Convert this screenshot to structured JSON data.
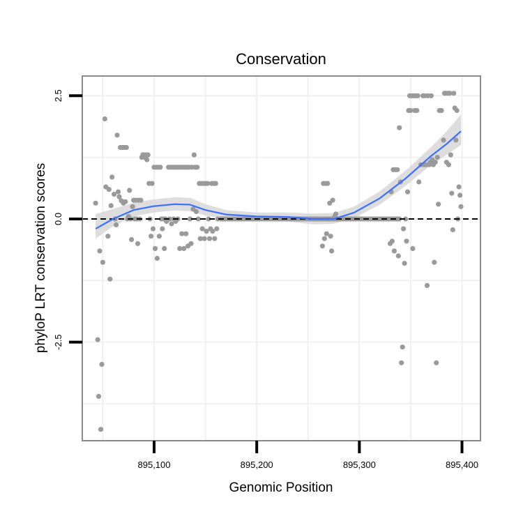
{
  "chart_data": {
    "type": "scatter",
    "title": "Conservation",
    "xlabel": "Genomic Position",
    "ylabel": "phyloP LRT conservation scores",
    "xlim": [
      895030,
      895418
    ],
    "ylim": [
      -4.5,
      2.9
    ],
    "x_ticks": [
      {
        "value": 895100,
        "label": "895,100"
      },
      {
        "value": 895200,
        "label": "895,200"
      },
      {
        "value": 895300,
        "label": "895,300"
      },
      {
        "value": 895400,
        "label": "895,400"
      }
    ],
    "y_ticks": [
      {
        "value": -2.5,
        "label": "-2.5"
      },
      {
        "value": 0.0,
        "label": "0.0"
      },
      {
        "value": 2.5,
        "label": "2.5"
      }
    ],
    "reference_line": {
      "y": 0,
      "style": "dashed"
    },
    "grid": true,
    "points": [
      {
        "x": 895043,
        "y": 0.32
      },
      {
        "x": 895045,
        "y": -2.45
      },
      {
        "x": 895046,
        "y": -3.6
      },
      {
        "x": 895047,
        "y": -0.65
      },
      {
        "x": 895048,
        "y": -4.27
      },
      {
        "x": 895049,
        "y": -2.95
      },
      {
        "x": 895050,
        "y": -0.88
      },
      {
        "x": 895052,
        "y": 2.03
      },
      {
        "x": 895053,
        "y": 0.65
      },
      {
        "x": 895055,
        "y": -0.35
      },
      {
        "x": 895056,
        "y": 0.6
      },
      {
        "x": 895057,
        "y": -1.22
      },
      {
        "x": 895058,
        "y": 0.27
      },
      {
        "x": 895059,
        "y": 0.85
      },
      {
        "x": 895061,
        "y": 0.5
      },
      {
        "x": 895062,
        "y": 0.0
      },
      {
        "x": 895063,
        "y": -0.12
      },
      {
        "x": 895064,
        "y": 1.7
      },
      {
        "x": 895065,
        "y": 0.55
      },
      {
        "x": 895066,
        "y": 0.45
      },
      {
        "x": 895067,
        "y": 1.45
      },
      {
        "x": 895068,
        "y": 0.37
      },
      {
        "x": 895069,
        "y": 1.45
      },
      {
        "x": 895070,
        "y": 0.32
      },
      {
        "x": 895071,
        "y": 1.45
      },
      {
        "x": 895072,
        "y": 0.35
      },
      {
        "x": 895073,
        "y": 1.45
      },
      {
        "x": 895074,
        "y": 0.0
      },
      {
        "x": 895075,
        "y": 0.05
      },
      {
        "x": 895076,
        "y": 0.58
      },
      {
        "x": 895077,
        "y": 0.0
      },
      {
        "x": 895078,
        "y": -0.42
      },
      {
        "x": 895079,
        "y": 0.25
      },
      {
        "x": 895080,
        "y": 0.38
      },
      {
        "x": 895081,
        "y": 0.0
      },
      {
        "x": 895082,
        "y": 0.38
      },
      {
        "x": 895083,
        "y": 0.0
      },
      {
        "x": 895084,
        "y": -0.5
      },
      {
        "x": 895085,
        "y": 0.38
      },
      {
        "x": 895086,
        "y": 0.0
      },
      {
        "x": 895087,
        "y": 0.38
      },
      {
        "x": 895088,
        "y": 1.25
      },
      {
        "x": 895089,
        "y": 1.3
      },
      {
        "x": 895090,
        "y": 1.3
      },
      {
        "x": 895091,
        "y": 1.25
      },
      {
        "x": 895092,
        "y": 1.3
      },
      {
        "x": 895093,
        "y": 1.2
      },
      {
        "x": 895094,
        "y": 1.3
      },
      {
        "x": 895095,
        "y": 0.72
      },
      {
        "x": 895096,
        "y": 0.0
      },
      {
        "x": 895097,
        "y": -0.35
      },
      {
        "x": 895098,
        "y": 0.72
      },
      {
        "x": 895099,
        "y": -0.2
      },
      {
        "x": 895100,
        "y": 1.05
      },
      {
        "x": 895101,
        "y": -0.6
      },
      {
        "x": 895102,
        "y": 1.05
      },
      {
        "x": 895103,
        "y": -0.8
      },
      {
        "x": 895104,
        "y": 1.05
      },
      {
        "x": 895105,
        "y": -0.35
      },
      {
        "x": 895106,
        "y": 1.05
      },
      {
        "x": 895107,
        "y": 0.0
      },
      {
        "x": 895108,
        "y": -0.2
      },
      {
        "x": 895109,
        "y": 0.0
      },
      {
        "x": 895110,
        "y": -0.6
      },
      {
        "x": 895111,
        "y": 0.0
      },
      {
        "x": 895112,
        "y": -0.05
      },
      {
        "x": 895114,
        "y": 1.05
      },
      {
        "x": 895115,
        "y": 0.0
      },
      {
        "x": 895116,
        "y": 1.05
      },
      {
        "x": 895117,
        "y": -0.1
      },
      {
        "x": 895118,
        "y": 1.05
      },
      {
        "x": 895119,
        "y": 0.0
      },
      {
        "x": 895120,
        "y": 1.05
      },
      {
        "x": 895121,
        "y": -0.05
      },
      {
        "x": 895122,
        "y": 1.05
      },
      {
        "x": 895123,
        "y": 0.0
      },
      {
        "x": 895124,
        "y": 1.05
      },
      {
        "x": 895125,
        "y": -0.6
      },
      {
        "x": 895126,
        "y": 1.05
      },
      {
        "x": 895127,
        "y": -0.3
      },
      {
        "x": 895128,
        "y": 1.05
      },
      {
        "x": 895129,
        "y": -0.6
      },
      {
        "x": 895130,
        "y": 1.05
      },
      {
        "x": 895131,
        "y": -0.3
      },
      {
        "x": 895132,
        "y": 1.05
      },
      {
        "x": 895133,
        "y": -0.55
      },
      {
        "x": 895134,
        "y": 1.05
      },
      {
        "x": 895135,
        "y": 0.0
      },
      {
        "x": 895136,
        "y": -0.5
      },
      {
        "x": 895137,
        "y": 1.05
      },
      {
        "x": 895138,
        "y": 0.2
      },
      {
        "x": 895139,
        "y": 1.3
      },
      {
        "x": 895140,
        "y": 1.05
      },
      {
        "x": 895141,
        "y": 0.15
      },
      {
        "x": 895142,
        "y": 1.05
      },
      {
        "x": 895143,
        "y": 0.0
      },
      {
        "x": 895144,
        "y": 0.72
      },
      {
        "x": 895145,
        "y": -0.4
      },
      {
        "x": 895146,
        "y": 0.72
      },
      {
        "x": 895147,
        "y": -0.2
      },
      {
        "x": 895148,
        "y": 0.72
      },
      {
        "x": 895149,
        "y": -0.4
      },
      {
        "x": 895150,
        "y": 0.72
      },
      {
        "x": 895151,
        "y": -0.25
      },
      {
        "x": 895152,
        "y": 0.72
      },
      {
        "x": 895153,
        "y": 0.0
      },
      {
        "x": 895154,
        "y": -0.4
      },
      {
        "x": 895155,
        "y": -0.2
      },
      {
        "x": 895156,
        "y": 0.72
      },
      {
        "x": 895157,
        "y": -0.25
      },
      {
        "x": 895158,
        "y": 0.72
      },
      {
        "x": 895159,
        "y": -0.4
      },
      {
        "x": 895160,
        "y": 0.72
      },
      {
        "x": 895161,
        "y": -0.2
      },
      {
        "x": 895162,
        "y": 0.0
      },
      {
        "x": 895264,
        "y": -0.55
      },
      {
        "x": 895265,
        "y": 0.72
      },
      {
        "x": 895266,
        "y": -0.4
      },
      {
        "x": 895267,
        "y": 0.72
      },
      {
        "x": 895268,
        "y": -0.3
      },
      {
        "x": 895269,
        "y": 0.72
      },
      {
        "x": 895270,
        "y": 0.0
      },
      {
        "x": 895271,
        "y": 0.32
      },
      {
        "x": 895272,
        "y": -0.35
      },
      {
        "x": 895273,
        "y": -0.65
      },
      {
        "x": 895274,
        "y": 0.38
      },
      {
        "x": 895275,
        "y": 0.0
      },
      {
        "x": 895276,
        "y": 0.05
      },
      {
        "x": 895277,
        "y": 0.1
      },
      {
        "x": 895278,
        "y": 0.0
      },
      {
        "x": 895330,
        "y": -0.5
      },
      {
        "x": 895331,
        "y": 0.55
      },
      {
        "x": 895332,
        "y": -0.45
      },
      {
        "x": 895333,
        "y": 1.0
      },
      {
        "x": 895334,
        "y": -0.65
      },
      {
        "x": 895335,
        "y": 1.0
      },
      {
        "x": 895336,
        "y": 0.0
      },
      {
        "x": 895337,
        "y": 1.0
      },
      {
        "x": 895338,
        "y": -0.75
      },
      {
        "x": 895339,
        "y": 1.85
      },
      {
        "x": 895340,
        "y": 0.75
      },
      {
        "x": 895341,
        "y": -2.92
      },
      {
        "x": 895342,
        "y": -2.6
      },
      {
        "x": 895343,
        "y": -0.2
      },
      {
        "x": 895344,
        "y": -0.9
      },
      {
        "x": 895345,
        "y": 0.0
      },
      {
        "x": 895346,
        "y": -0.45
      },
      {
        "x": 895347,
        "y": 0.55
      },
      {
        "x": 895348,
        "y": 2.2
      },
      {
        "x": 895349,
        "y": 2.5
      },
      {
        "x": 895350,
        "y": 2.2
      },
      {
        "x": 895351,
        "y": 2.5
      },
      {
        "x": 895352,
        "y": -0.6
      },
      {
        "x": 895353,
        "y": 2.5
      },
      {
        "x": 895354,
        "y": 2.2
      },
      {
        "x": 895355,
        "y": 2.5
      },
      {
        "x": 895356,
        "y": 2.2
      },
      {
        "x": 895357,
        "y": 2.5
      },
      {
        "x": 895358,
        "y": 0.75
      },
      {
        "x": 895360,
        "y": 1.1
      },
      {
        "x": 895362,
        "y": 2.5
      },
      {
        "x": 895363,
        "y": 1.1
      },
      {
        "x": 895364,
        "y": 2.5
      },
      {
        "x": 895365,
        "y": 1.1
      },
      {
        "x": 895366,
        "y": -1.35
      },
      {
        "x": 895367,
        "y": 2.5
      },
      {
        "x": 895368,
        "y": 1.1
      },
      {
        "x": 895369,
        "y": 1.15
      },
      {
        "x": 895370,
        "y": 2.5
      },
      {
        "x": 895371,
        "y": 1.2
      },
      {
        "x": 895372,
        "y": 1.1
      },
      {
        "x": 895373,
        "y": -0.88
      },
      {
        "x": 895374,
        "y": 1.15
      },
      {
        "x": 895375,
        "y": -2.92
      },
      {
        "x": 895376,
        "y": 1.25
      },
      {
        "x": 895377,
        "y": 0.3
      },
      {
        "x": 895378,
        "y": 2.2
      },
      {
        "x": 895380,
        "y": 2.2
      },
      {
        "x": 895382,
        "y": 1.6
      },
      {
        "x": 895383,
        "y": 2.55
      },
      {
        "x": 895384,
        "y": 2.55
      },
      {
        "x": 895385,
        "y": 1.15
      },
      {
        "x": 895386,
        "y": 2.55
      },
      {
        "x": 895387,
        "y": 1.1
      },
      {
        "x": 895388,
        "y": 2.55
      },
      {
        "x": 895389,
        "y": 1.3
      },
      {
        "x": 895390,
        "y": 0.52
      },
      {
        "x": 895391,
        "y": -0.22
      },
      {
        "x": 895392,
        "y": 2.55
      },
      {
        "x": 895393,
        "y": 2.25
      },
      {
        "x": 895394,
        "y": 1.6
      },
      {
        "x": 895395,
        "y": 2.2
      },
      {
        "x": 895396,
        "y": 0.0
      },
      {
        "x": 895397,
        "y": 0.65
      },
      {
        "x": 895398,
        "y": 0.48
      },
      {
        "x": 895399,
        "y": 0.25
      }
    ],
    "zero_points": {
      "x_from": 895165,
      "x_to": 895340,
      "step": 2,
      "y": 0.0
    },
    "smooth_fit": [
      {
        "x": 895043,
        "y": -0.2,
        "lo": -0.4,
        "hi": 0.1
      },
      {
        "x": 895060,
        "y": 0.0,
        "lo": -0.15,
        "hi": 0.2
      },
      {
        "x": 895080,
        "y": 0.18,
        "lo": 0.05,
        "hi": 0.33
      },
      {
        "x": 895100,
        "y": 0.26,
        "lo": 0.13,
        "hi": 0.4
      },
      {
        "x": 895120,
        "y": 0.3,
        "lo": 0.17,
        "hi": 0.44
      },
      {
        "x": 895135,
        "y": 0.29,
        "lo": 0.16,
        "hi": 0.43
      },
      {
        "x": 895150,
        "y": 0.18,
        "lo": 0.07,
        "hi": 0.3
      },
      {
        "x": 895170,
        "y": 0.09,
        "lo": 0.0,
        "hi": 0.18
      },
      {
        "x": 895200,
        "y": 0.05,
        "lo": -0.03,
        "hi": 0.13
      },
      {
        "x": 895230,
        "y": 0.04,
        "lo": -0.05,
        "hi": 0.13
      },
      {
        "x": 895255,
        "y": 0.0,
        "lo": -0.11,
        "hi": 0.11
      },
      {
        "x": 895275,
        "y": 0.0,
        "lo": -0.1,
        "hi": 0.12
      },
      {
        "x": 895295,
        "y": 0.13,
        "lo": 0.02,
        "hi": 0.25
      },
      {
        "x": 895320,
        "y": 0.42,
        "lo": 0.29,
        "hi": 0.56
      },
      {
        "x": 895345,
        "y": 0.82,
        "lo": 0.67,
        "hi": 0.98
      },
      {
        "x": 895370,
        "y": 1.28,
        "lo": 1.1,
        "hi": 1.46
      },
      {
        "x": 895385,
        "y": 1.52,
        "lo": 1.3,
        "hi": 1.78
      },
      {
        "x": 895399,
        "y": 1.78,
        "lo": 1.5,
        "hi": 2.12
      }
    ],
    "colors": {
      "points": "#9a9a9a",
      "smooth_line": "#3b6fff",
      "confidence_band": "#d9d9d9",
      "panel_border": "#8a8a8a",
      "grid": "#f0f0f0",
      "reference_line": "#000000"
    }
  }
}
